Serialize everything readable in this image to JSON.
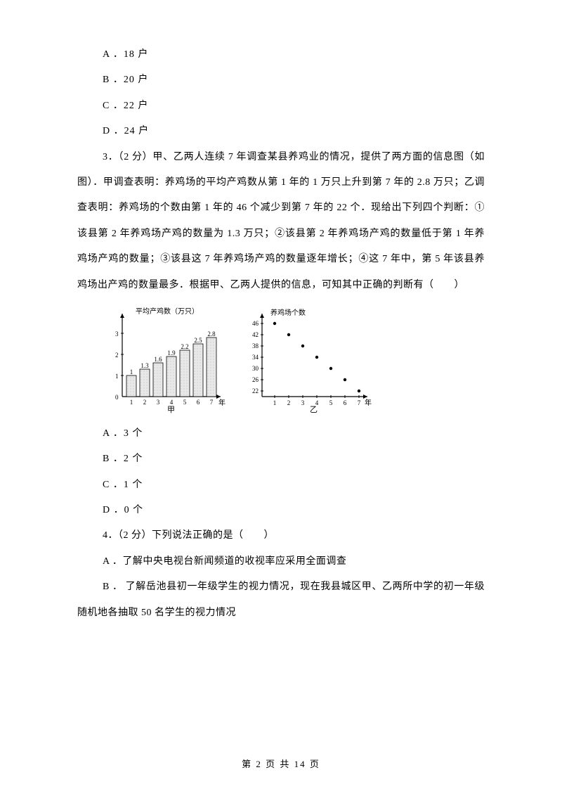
{
  "q2": {
    "optA": "A ．18 户",
    "optB": "B ．20 户",
    "optC": "C ．22 户",
    "optD": "D ．24 户"
  },
  "q3": {
    "stem": "3．（2 分）甲、乙两人连续 7 年调查某县养鸡业的情况，提供了两方面的信息图（如图）．甲调查表明：养鸡场的平均产鸡数从第 1 年的 1 万只上升到第 7 年的 2.8 万只；乙调查表明：养鸡场的个数由第 1 年的 46 个减少到第 7 年的 22 个．现给出下列四个判断：①该县第 2 年养鸡场产鸡的数量为 1.3 万只；②该县第 2 年养鸡场产鸡的数量低于第 1 年养鸡场产鸡的数量；③该县这 7 年养鸡场产鸡的数量逐年增长；④这 7 年中，第 5 年该县养鸡场出产鸡的数量最多．根据甲、乙两人提供的信息，可知其中正确的判断有（　　）",
    "optA": "A ．3 个",
    "optB": "B ．2 个",
    "optC": "C ．1 个",
    "optD": "D ．0 个",
    "chart_jia": {
      "type": "bar",
      "title": "平均产鸡数（万只）",
      "categories": [
        "1",
        "2",
        "3",
        "4",
        "5",
        "6",
        "7"
      ],
      "values": [
        1.0,
        1.3,
        1.6,
        1.9,
        2.2,
        2.5,
        2.8
      ],
      "bar_labels": [
        "1",
        "1.3",
        "1.6",
        "1.9",
        "2.2",
        "2.5",
        "2.8"
      ],
      "yticks": [
        0,
        1,
        2,
        3
      ],
      "xlabel": "年",
      "caption": "甲",
      "axis_color": "#000000",
      "bar_fill": "#e8e8e8",
      "bar_stroke": "#000000",
      "text_fontsize": 9
    },
    "chart_yi": {
      "type": "scatter",
      "title": "养鸡场个数",
      "x": [
        1,
        2,
        3,
        4,
        5,
        6,
        7
      ],
      "y": [
        46,
        42,
        38,
        34,
        30,
        26,
        22
      ],
      "yticks": [
        22,
        26,
        30,
        34,
        38,
        42,
        46
      ],
      "xlabel": "年",
      "caption": "乙",
      "axis_color": "#000000",
      "marker_color": "#000000",
      "marker_radius": 2.2,
      "text_fontsize": 9
    }
  },
  "q4": {
    "stem": "4．（2 分）下列说法正确的是（　　）",
    "optA": "A ．了解中央电视台新闻频道的收视率应采用全面调查",
    "optB": "B ．  了解岳池县初一年级学生的视力情况，现在我县城区甲、乙两所中学的初一年级随机地各抽取 50 名学生的视力情况"
  },
  "footer": "第  2  页  共  14  页"
}
